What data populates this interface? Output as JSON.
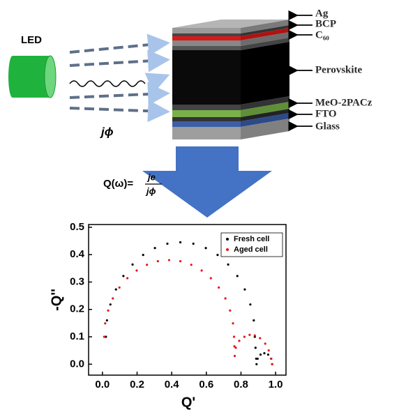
{
  "diagram": {
    "led_label": "LED",
    "flux_label": "jϕ",
    "formula": {
      "lhs": "Q(ω)=",
      "numerator": "je",
      "denominator": "jϕ"
    },
    "layers": [
      "Ag",
      "BCP",
      "C₆₀",
      "Perovskite",
      "MeO-2PACz",
      "FTO",
      "Glass"
    ]
  },
  "chart_data": {
    "type": "scatter",
    "xlabel": "Q'",
    "ylabel": "-Q''",
    "xlim": [
      -0.08,
      1.06
    ],
    "ylim": [
      -0.04,
      0.51
    ],
    "xticks": [
      {
        "value": 0,
        "label": "0.0"
      },
      0.2,
      0.4,
      0.6,
      0.8,
      {
        "value": 1,
        "label": "1.0"
      }
    ],
    "yticks": [
      {
        "value": 0,
        "label": "0.0"
      },
      0.1,
      0.2,
      0.3,
      0.4,
      0.5
    ],
    "legend": "upper right",
    "series": [
      {
        "name": "Fresh cell",
        "color": "#000000",
        "x": [
          0.02,
          0.026,
          0.046,
          0.078,
          0.121,
          0.174,
          0.235,
          0.303,
          0.375,
          0.45,
          0.525,
          0.597,
          0.665,
          0.726,
          0.779,
          0.822,
          0.854,
          0.874,
          0.88,
          0.884,
          0.888,
          0.89,
          0.896,
          0.913,
          0.935,
          0.957,
          0.974,
          0.98
        ],
        "values": [
          0.1,
          0.16,
          0.218,
          0.273,
          0.322,
          0.364,
          0.399,
          0.424,
          0.44,
          0.445,
          0.44,
          0.424,
          0.399,
          0.364,
          0.322,
          0.273,
          0.218,
          0.16,
          0.1,
          0.06,
          0.02,
          0.0,
          0.02,
          0.035,
          0.04,
          0.035,
          0.02,
          0.0
        ]
      },
      {
        "name": "Aged cell",
        "color": "#e8141c",
        "x": [
          0.01,
          0.016,
          0.033,
          0.06,
          0.098,
          0.144,
          0.198,
          0.257,
          0.32,
          0.385,
          0.45,
          0.513,
          0.573,
          0.626,
          0.672,
          0.71,
          0.737,
          0.754,
          0.76,
          0.762,
          0.764,
          0.77,
          0.79,
          0.82,
          0.85,
          0.88,
          0.91,
          0.94,
          0.96,
          0.975,
          0.98
        ],
        "values": [
          0.1,
          0.149,
          0.196,
          0.24,
          0.28,
          0.314,
          0.342,
          0.363,
          0.376,
          0.38,
          0.376,
          0.363,
          0.342,
          0.314,
          0.28,
          0.24,
          0.196,
          0.149,
          0.1,
          0.065,
          0.03,
          0.06,
          0.085,
          0.1,
          0.107,
          0.105,
          0.095,
          0.075,
          0.05,
          0.02,
          0.0
        ]
      }
    ]
  }
}
